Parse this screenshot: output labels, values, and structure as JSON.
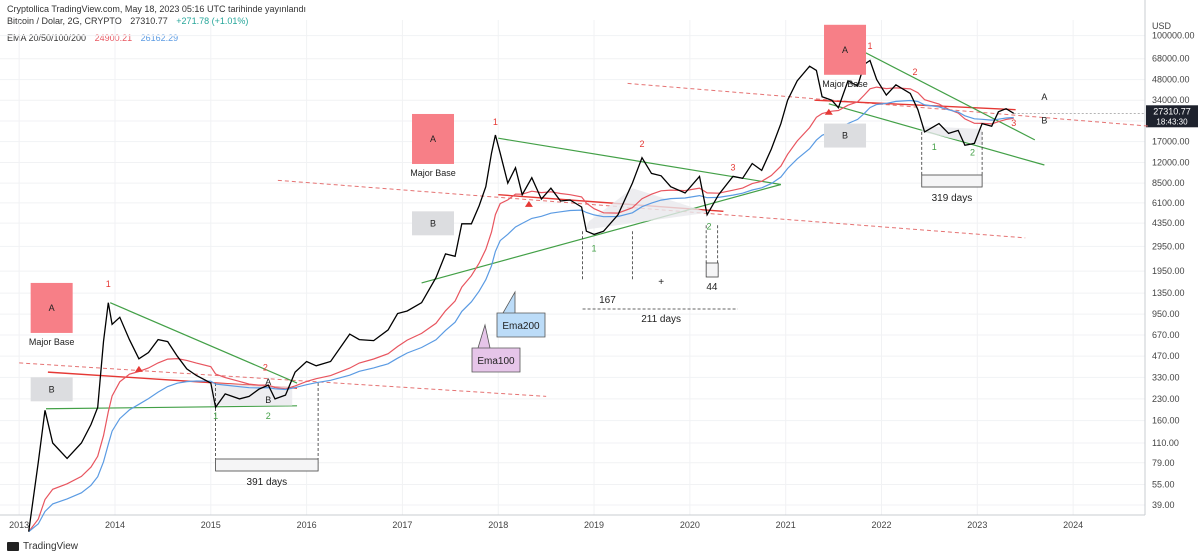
{
  "header": {
    "publisher": "Cryptollica TradingView.com, May 18, 2023 05:16 UTC tarihinde yayınlandı",
    "symbol": "Bitcoin / Dolar, 2G, CRYPTO",
    "last": "27310.77",
    "change": "+271.78 (+1.01%)",
    "ema_label": "EMA 20/50/100/200",
    "ema100_value": "24900.21",
    "ema200_value": "26162.29"
  },
  "footer": {
    "brand": "TradingView"
  },
  "colors": {
    "ema_red": "#e8555f",
    "ema_blue": "#5b9be3",
    "green": "#4caf50",
    "price": "#000000",
    "box_a": "#f77f87",
    "box_b": "#dcdde0"
  },
  "chart_data": {
    "type": "line",
    "scale": "log",
    "currency": "USD",
    "current_price_label": "27310.77",
    "current_time_label": "18:43:30",
    "y_ticks": [
      "100000.00",
      "68000.00",
      "48000.00",
      "34000.00",
      "24000.00",
      "17000.00",
      "12000.00",
      "8500.00",
      "6100.00",
      "4350.00",
      "2950.00",
      "1950.00",
      "1350.00",
      "950.00",
      "670.00",
      "470.00",
      "330.00",
      "230.00",
      "160.00",
      "110.00",
      "79.00",
      "55.00",
      "39.00"
    ],
    "x_ticks": [
      "2013",
      "2014",
      "2015",
      "2016",
      "2017",
      "2018",
      "2019",
      "2020",
      "2021",
      "2022",
      "2023",
      "2024"
    ],
    "xlim": [
      2012.8,
      2024.75
    ],
    "ylim": [
      33,
      130000
    ],
    "price_series": [
      [
        2013.1,
        25
      ],
      [
        2013.2,
        80
      ],
      [
        2013.27,
        190
      ],
      [
        2013.35,
        110
      ],
      [
        2013.5,
        85
      ],
      [
        2013.65,
        110
      ],
      [
        2013.75,
        150
      ],
      [
        2013.82,
        200
      ],
      [
        2013.88,
        600
      ],
      [
        2013.93,
        1150
      ],
      [
        2013.97,
        800
      ],
      [
        2014.05,
        900
      ],
      [
        2014.15,
        620
      ],
      [
        2014.25,
        450
      ],
      [
        2014.35,
        500
      ],
      [
        2014.45,
        620
      ],
      [
        2014.55,
        600
      ],
      [
        2014.65,
        470
      ],
      [
        2014.75,
        380
      ],
      [
        2014.85,
        340
      ],
      [
        2015.0,
        300
      ],
      [
        2015.05,
        200
      ],
      [
        2015.15,
        250
      ],
      [
        2015.3,
        230
      ],
      [
        2015.4,
        240
      ],
      [
        2015.5,
        270
      ],
      [
        2015.6,
        290
      ],
      [
        2015.67,
        230
      ],
      [
        2015.78,
        245
      ],
      [
        2015.88,
        360
      ],
      [
        2016.0,
        430
      ],
      [
        2016.1,
        400
      ],
      [
        2016.25,
        430
      ],
      [
        2016.45,
        680
      ],
      [
        2016.55,
        620
      ],
      [
        2016.7,
        610
      ],
      [
        2016.85,
        730
      ],
      [
        2016.95,
        960
      ],
      [
        2017.05,
        1000
      ],
      [
        2017.2,
        1150
      ],
      [
        2017.35,
        1750
      ],
      [
        2017.45,
        2600
      ],
      [
        2017.55,
        2500
      ],
      [
        2017.62,
        4300
      ],
      [
        2017.72,
        4300
      ],
      [
        2017.8,
        5800
      ],
      [
        2017.87,
        8000
      ],
      [
        2017.93,
        14000
      ],
      [
        2017.97,
        19000
      ],
      [
        2018.02,
        14000
      ],
      [
        2018.1,
        8500
      ],
      [
        2018.18,
        11000
      ],
      [
        2018.25,
        7000
      ],
      [
        2018.35,
        9300
      ],
      [
        2018.45,
        6500
      ],
      [
        2018.55,
        7800
      ],
      [
        2018.65,
        6300
      ],
      [
        2018.75,
        6400
      ],
      [
        2018.87,
        5700
      ],
      [
        2018.92,
        3800
      ],
      [
        2019.0,
        3600
      ],
      [
        2019.1,
        3800
      ],
      [
        2019.25,
        5000
      ],
      [
        2019.4,
        8500
      ],
      [
        2019.5,
        13000
      ],
      [
        2019.6,
        10000
      ],
      [
        2019.7,
        9600
      ],
      [
        2019.8,
        8000
      ],
      [
        2019.95,
        7200
      ],
      [
        2020.1,
        9500
      ],
      [
        2020.18,
        5000
      ],
      [
        2020.3,
        7000
      ],
      [
        2020.45,
        9500
      ],
      [
        2020.55,
        9200
      ],
      [
        2020.65,
        11800
      ],
      [
        2020.75,
        10500
      ],
      [
        2020.85,
        15000
      ],
      [
        2020.95,
        23000
      ],
      [
        2021.02,
        34000
      ],
      [
        2021.12,
        47000
      ],
      [
        2021.25,
        60000
      ],
      [
        2021.32,
        56000
      ],
      [
        2021.38,
        36000
      ],
      [
        2021.48,
        34000
      ],
      [
        2021.55,
        30000
      ],
      [
        2021.65,
        47000
      ],
      [
        2021.75,
        43000
      ],
      [
        2021.82,
        62000
      ],
      [
        2021.88,
        66000
      ],
      [
        2021.95,
        48000
      ],
      [
        2022.05,
        37000
      ],
      [
        2022.15,
        44000
      ],
      [
        2022.3,
        38000
      ],
      [
        2022.38,
        29000
      ],
      [
        2022.45,
        20000
      ],
      [
        2022.6,
        23000
      ],
      [
        2022.7,
        19500
      ],
      [
        2022.8,
        20500
      ],
      [
        2022.87,
        16000
      ],
      [
        2022.97,
        16500
      ],
      [
        2023.05,
        23000
      ],
      [
        2023.15,
        22000
      ],
      [
        2023.22,
        28000
      ],
      [
        2023.3,
        29500
      ],
      [
        2023.38,
        27310
      ]
    ]
  },
  "annotations": {
    "boxes": [
      "A",
      "B",
      "A",
      "B",
      "A",
      "B"
    ],
    "major_base_label": "Major Base",
    "day_counts": [
      "391 days",
      "167",
      "211 days",
      "44",
      "319 days"
    ],
    "tops": [
      "1",
      "2",
      "1",
      "2",
      "3",
      "1",
      "2",
      "3"
    ],
    "bottoms": [
      "1",
      "2",
      "1",
      "2",
      "1",
      "2"
    ],
    "right_labels": [
      "A",
      "B",
      "A",
      "B"
    ],
    "ema200_callout": "Ema200",
    "ema100_callout": "Ema100",
    "plus": "+"
  }
}
